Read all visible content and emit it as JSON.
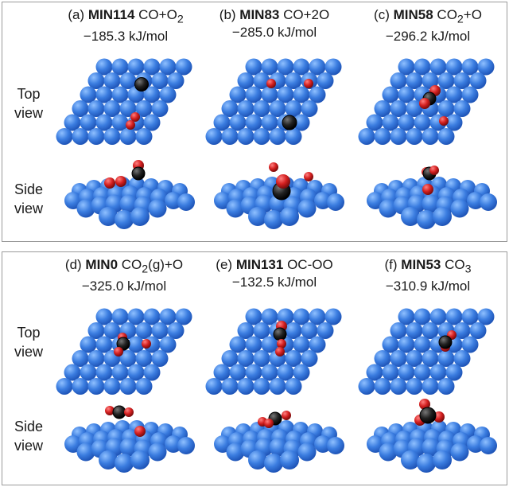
{
  "row_labels": {
    "top": [
      "Top",
      "view"
    ],
    "side": [
      "Side",
      "view"
    ]
  },
  "panels": [
    {
      "letter": "(a)",
      "id": "MIN114",
      "species": "CO+O",
      "species_sub": "2",
      "species_tail": "",
      "energy": "−185.3 kJ/mol",
      "top_mol": "co_o2",
      "side_mol": "co_o2"
    },
    {
      "letter": "(b)",
      "id": "MIN83",
      "species": "CO+2O",
      "species_sub": "",
      "species_tail": "",
      "energy": "−285.0 kJ/mol",
      "top_mol": "co_2o",
      "side_mol": "co_2o"
    },
    {
      "letter": "(c)",
      "id": "MIN58",
      "species": "CO",
      "species_sub": "2",
      "species_tail": "+O",
      "energy": "−296.2 kJ/mol",
      "top_mol": "co2_o",
      "side_mol": "co2_o"
    },
    {
      "letter": "(d)",
      "id": "MIN0",
      "species": "CO",
      "species_sub": "2",
      "species_tail": "(g)+O",
      "energy": "−325.0 kJ/mol",
      "top_mol": "co2g_o",
      "side_mol": "co2g_o"
    },
    {
      "letter": "(e)",
      "id": "MIN131",
      "species": "OC-OO",
      "species_sub": "",
      "species_tail": "",
      "energy": "−132.5 kJ/mol",
      "top_mol": "oc_oo",
      "side_mol": "oc_oo"
    },
    {
      "letter": "(f)",
      "id": "MIN53",
      "species": "CO",
      "species_sub": "3",
      "species_tail": "",
      "energy": "−310.9 kJ/mol",
      "top_mol": "co3",
      "side_mol": "co3"
    }
  ],
  "colors": {
    "metal": "#3b7de0",
    "metal_light": "#8fc0ff",
    "metal_dark": "#1f55b8",
    "oxygen": "#d42020",
    "carbon": "#222222",
    "frame": "#9a9a9a"
  },
  "atom_legend": {
    "metal_surface": "blue-sphere",
    "oxygen": "red-sphere",
    "carbon": "black-sphere"
  }
}
